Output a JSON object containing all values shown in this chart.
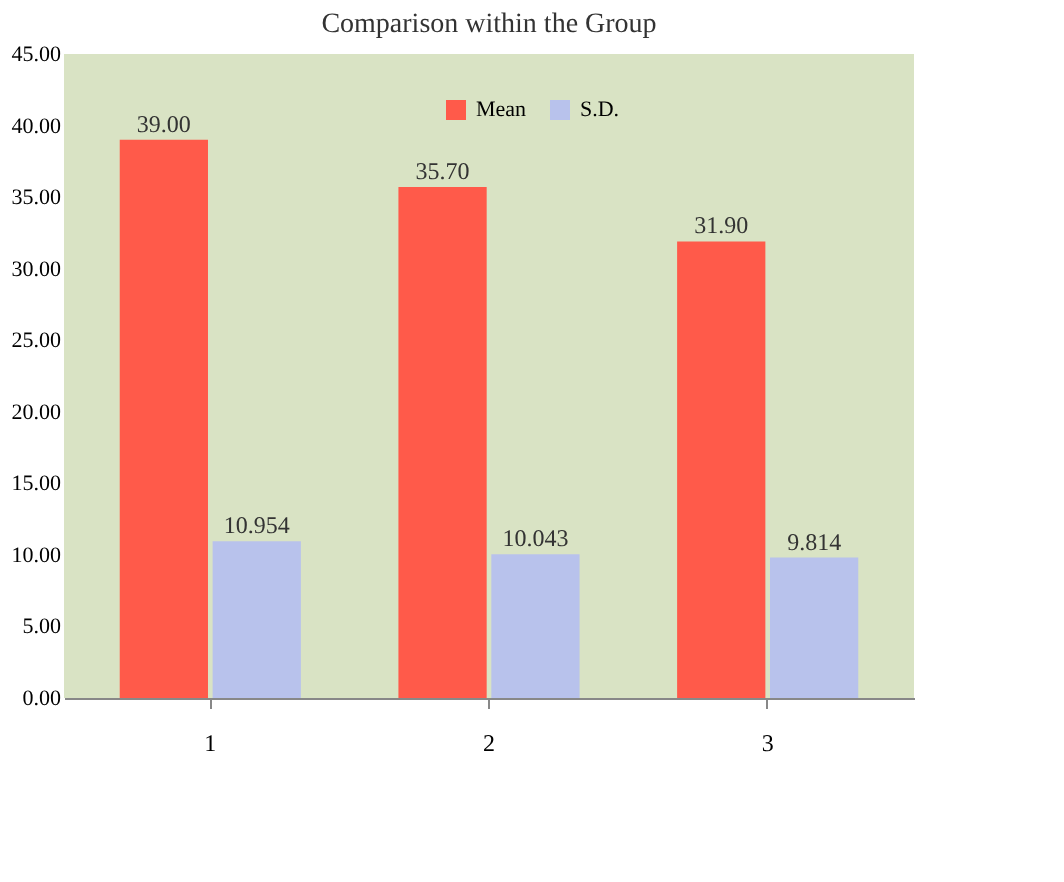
{
  "chart_data": {
    "type": "bar",
    "title": "Comparison within the Group",
    "categories": [
      "1",
      "2",
      "3"
    ],
    "series": [
      {
        "name": "Mean",
        "color": "#ff5a4a",
        "values": [
          39.0,
          35.7,
          31.9
        ],
        "value_labels": [
          "39.00",
          "35.70",
          "31.90"
        ]
      },
      {
        "name": "S.D.",
        "color": "#b8c2ec",
        "values": [
          10.954,
          10.043,
          9.814
        ],
        "value_labels": [
          "10.954",
          "10.043",
          "9.814"
        ]
      }
    ],
    "ylim": [
      0,
      45
    ],
    "yticks": [
      {
        "value": 0,
        "label": "0.00"
      },
      {
        "value": 5,
        "label": "5.00"
      },
      {
        "value": 10,
        "label": "10.00"
      },
      {
        "value": 15,
        "label": "15.00"
      },
      {
        "value": 20,
        "label": "20.00"
      },
      {
        "value": 25,
        "label": "25.00"
      },
      {
        "value": 30,
        "label": "30.00"
      },
      {
        "value": 35,
        "label": "35.00"
      },
      {
        "value": 40,
        "label": "40.00"
      },
      {
        "value": 45,
        "label": "45.00"
      }
    ],
    "legend": "top",
    "grid": false
  }
}
